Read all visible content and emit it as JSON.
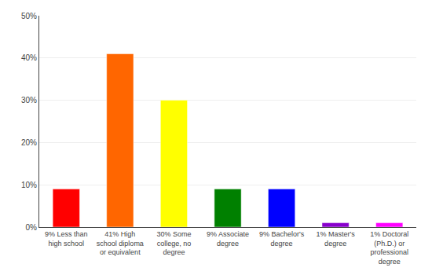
{
  "chart_data": {
    "type": "bar",
    "categories": [
      "9% Less than\nhigh school",
      "41% High\nschool diploma\nor equivalent",
      "30% Some\ncollege, no\ndegree",
      "9% Associate\ndegree",
      "9% Bachelor's\ndegree",
      "1% Master's\ndegree",
      "1% Doctoral\n(Ph.D.) or\nprofessional\ndegree"
    ],
    "values": [
      9,
      41,
      30,
      9,
      9,
      1,
      1
    ],
    "colors": [
      "#ff0000",
      "#ff6600",
      "#ffff00",
      "#008000",
      "#0000ff",
      "#8800cc",
      "#ff00ff"
    ],
    "ylim": [
      0,
      50
    ],
    "yticks": [
      {
        "value": 0,
        "label": "0%"
      },
      {
        "value": 10,
        "label": "10%"
      },
      {
        "value": 20,
        "label": "20%"
      },
      {
        "value": 30,
        "label": "30%"
      },
      {
        "value": 40,
        "label": "40%"
      },
      {
        "value": 50,
        "label": "50%"
      }
    ],
    "grid": true
  }
}
